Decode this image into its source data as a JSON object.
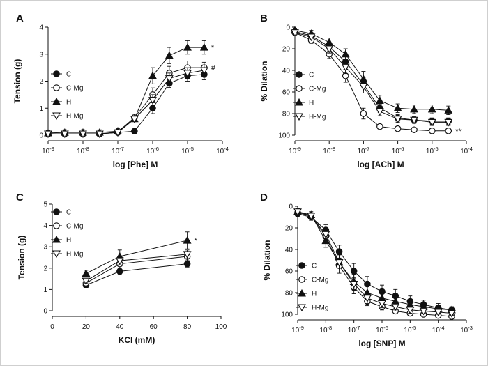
{
  "figure": {
    "panels": [
      "A",
      "B",
      "C",
      "D"
    ]
  },
  "chart_data": [
    {
      "panel": "A",
      "type": "line",
      "xlabel": "log [Phe] M",
      "ylabel": "Tension (g)",
      "x_scale": "log",
      "xlim": [
        1e-09,
        0.0001
      ],
      "ylim": [
        0,
        4
      ],
      "y_reversed": false,
      "x_ticks": [
        {
          "v": 1e-09,
          "e": "-9"
        },
        {
          "v": 1e-08,
          "e": "-8"
        },
        {
          "v": 1e-07,
          "e": "-7"
        },
        {
          "v": 1e-06,
          "e": "-6"
        },
        {
          "v": 1e-05,
          "e": "-5"
        },
        {
          "v": 0.0001,
          "e": "-4"
        }
      ],
      "y_ticks": [
        0,
        1,
        2,
        3,
        4
      ],
      "x_tick_base": "10",
      "legend": {
        "placement": "left",
        "entries": [
          "C",
          "C-Mg",
          "H",
          "H-Mg"
        ]
      },
      "x": [
        1e-09,
        3e-09,
        1e-08,
        3e-08,
        1e-07,
        3e-07,
        1e-06,
        3e-06,
        1e-05,
        3e-05
      ],
      "series": [
        {
          "name": "C",
          "marker": "circle-filled",
          "values": [
            0.05,
            0.05,
            0.05,
            0.05,
            0.1,
            0.15,
            1.0,
            1.92,
            2.2,
            2.25
          ],
          "errors": [
            0.05,
            0.05,
            0.05,
            0.05,
            0.05,
            0.05,
            0.2,
            0.15,
            0.2,
            0.2
          ]
        },
        {
          "name": "C-Mg",
          "marker": "circle-open",
          "values": [
            0.05,
            0.05,
            0.05,
            0.05,
            0.12,
            0.65,
            1.5,
            2.3,
            2.5,
            2.5
          ],
          "errors": [
            0.05,
            0.05,
            0.05,
            0.05,
            0.05,
            0.1,
            0.25,
            0.25,
            0.25,
            0.2
          ]
        },
        {
          "name": "H",
          "marker": "triangle-filled",
          "values": [
            0.08,
            0.1,
            0.1,
            0.1,
            0.15,
            0.6,
            2.2,
            2.95,
            3.25,
            3.25
          ],
          "errors": [
            0.1,
            0.1,
            0.1,
            0.1,
            0.1,
            0.15,
            0.3,
            0.3,
            0.25,
            0.25
          ]
        },
        {
          "name": "H-Mg",
          "marker": "triangle-open",
          "values": [
            0.05,
            0.05,
            0.05,
            0.05,
            0.1,
            0.6,
            1.3,
            2.1,
            2.3,
            2.4
          ],
          "errors": [
            0.05,
            0.05,
            0.05,
            0.05,
            0.05,
            0.1,
            0.2,
            0.2,
            0.2,
            0.2
          ]
        }
      ],
      "annotations": [
        {
          "text": "*",
          "series": "H"
        },
        {
          "text": "#",
          "series": "C-Mg"
        }
      ]
    },
    {
      "panel": "B",
      "type": "line",
      "xlabel": "log [ACh] M",
      "ylabel": "% Dilation",
      "x_scale": "log",
      "xlim": [
        1e-09,
        0.0001
      ],
      "ylim": [
        0,
        100
      ],
      "y_reversed": true,
      "x_ticks": [
        {
          "v": 1e-09,
          "e": "-9"
        },
        {
          "v": 1e-08,
          "e": "-8"
        },
        {
          "v": 1e-07,
          "e": "-7"
        },
        {
          "v": 1e-06,
          "e": "-6"
        },
        {
          "v": 1e-05,
          "e": "-5"
        },
        {
          "v": 0.0001,
          "e": "-4"
        }
      ],
      "y_ticks": [
        0,
        20,
        40,
        60,
        80,
        100
      ],
      "x_tick_base": "10",
      "legend": {
        "placement": "center-left",
        "entries": [
          "C",
          "C-Mg",
          "H",
          "H-Mg"
        ]
      },
      "x": [
        1e-09,
        3e-09,
        1e-08,
        3e-08,
        1e-07,
        3e-07,
        1e-06,
        3e-06,
        1e-05,
        3e-05
      ],
      "series": [
        {
          "name": "C",
          "marker": "circle-filled",
          "values": [
            4,
            8,
            18,
            32,
            53,
            75,
            84,
            86,
            87,
            87
          ],
          "errors": [
            2,
            3,
            4,
            5,
            6,
            4,
            3,
            3,
            3,
            3
          ]
        },
        {
          "name": "C-Mg",
          "marker": "circle-open",
          "values": [
            5,
            12,
            25,
            45,
            80,
            92,
            94,
            95,
            96,
            96
          ],
          "errors": [
            2,
            3,
            4,
            6,
            5,
            2,
            1,
            1,
            1,
            1
          ]
        },
        {
          "name": "H",
          "marker": "triangle-filled",
          "values": [
            3,
            6,
            14,
            25,
            48,
            68,
            75,
            76,
            76,
            77
          ],
          "errors": [
            2,
            3,
            4,
            5,
            7,
            5,
            4,
            4,
            4,
            4
          ]
        },
        {
          "name": "H-Mg",
          "marker": "triangle-open",
          "values": [
            5,
            9,
            20,
            37,
            55,
            78,
            85,
            86,
            88,
            88
          ],
          "errors": [
            2,
            3,
            4,
            6,
            6,
            4,
            3,
            3,
            3,
            3
          ]
        }
      ],
      "annotations": [
        {
          "text": "**",
          "series": "C-Mg"
        }
      ]
    },
    {
      "panel": "C",
      "type": "line",
      "xlabel": "KCl (mM)",
      "ylabel": "Tension (g)",
      "x_scale": "linear",
      "xlim": [
        0,
        100
      ],
      "ylim": [
        0,
        5
      ],
      "y_reversed": false,
      "x_ticks": [
        {
          "v": 0,
          "t": "0"
        },
        {
          "v": 20,
          "t": "20"
        },
        {
          "v": 40,
          "t": "40"
        },
        {
          "v": 60,
          "t": "60"
        },
        {
          "v": 80,
          "t": "80"
        },
        {
          "v": 100,
          "t": "100"
        }
      ],
      "y_ticks": [
        0,
        1,
        2,
        3,
        4,
        5
      ],
      "legend": {
        "placement": "top-left",
        "entries": [
          "C",
          "C-Mg",
          "H",
          "H-Mg"
        ]
      },
      "x": [
        20,
        40,
        80
      ],
      "series": [
        {
          "name": "C",
          "marker": "circle-filled",
          "values": [
            1.2,
            1.85,
            2.2
          ],
          "errors": [
            0.1,
            0.15,
            0.15
          ]
        },
        {
          "name": "C-Mg",
          "marker": "circle-open",
          "values": [
            1.3,
            2.2,
            2.55
          ],
          "errors": [
            0.1,
            0.2,
            0.2
          ]
        },
        {
          "name": "H",
          "marker": "triangle-filled",
          "values": [
            1.75,
            2.55,
            3.3
          ],
          "errors": [
            0.15,
            0.3,
            0.4
          ]
        },
        {
          "name": "H-Mg",
          "marker": "triangle-open",
          "values": [
            1.4,
            2.35,
            2.65
          ],
          "errors": [
            0.1,
            0.2,
            0.2
          ]
        }
      ],
      "annotations": [
        {
          "text": "*",
          "series": "H"
        }
      ]
    },
    {
      "panel": "D",
      "type": "line",
      "xlabel": "log [SNP] M",
      "ylabel": "% Dilation",
      "x_scale": "log",
      "xlim": [
        1e-09,
        0.001
      ],
      "ylim": [
        0,
        100
      ],
      "y_reversed": true,
      "x_ticks": [
        {
          "v": 1e-09,
          "e": "-9"
        },
        {
          "v": 1e-08,
          "e": "-8"
        },
        {
          "v": 1e-07,
          "e": "-7"
        },
        {
          "v": 1e-06,
          "e": "-6"
        },
        {
          "v": 1e-05,
          "e": "-5"
        },
        {
          "v": 0.0001,
          "e": "-4"
        },
        {
          "v": 0.001,
          "e": "-3"
        }
      ],
      "y_ticks": [
        0,
        20,
        40,
        60,
        80,
        100
      ],
      "x_tick_base": "10",
      "legend": {
        "placement": "bottom-left",
        "entries": [
          "C",
          "C-Mg",
          "H",
          "H-Mg"
        ]
      },
      "x": [
        1e-09,
        3e-09,
        1e-08,
        3e-08,
        1e-07,
        3e-07,
        1e-06,
        3e-06,
        1e-05,
        3e-05,
        0.0001,
        0.0003
      ],
      "series": [
        {
          "name": "C",
          "marker": "circle-filled",
          "values": [
            7,
            10,
            22,
            42,
            60,
            72,
            79,
            83,
            88,
            91,
            94,
            96
          ],
          "errors": [
            3,
            3,
            5,
            6,
            7,
            7,
            6,
            6,
            5,
            4,
            4,
            3
          ]
        },
        {
          "name": "C-Mg",
          "marker": "circle-open",
          "values": [
            6,
            9,
            28,
            55,
            75,
            88,
            93,
            97,
            99,
            100,
            101,
            102
          ],
          "errors": [
            3,
            3,
            5,
            7,
            6,
            4,
            3,
            2,
            2,
            2,
            2,
            2
          ]
        },
        {
          "name": "H",
          "marker": "triangle-filled",
          "values": [
            5,
            8,
            32,
            52,
            70,
            80,
            85,
            88,
            91,
            93,
            95,
            96
          ],
          "errors": [
            3,
            3,
            6,
            7,
            7,
            6,
            5,
            5,
            4,
            4,
            3,
            3
          ]
        },
        {
          "name": "H-Mg",
          "marker": "triangle-open",
          "values": [
            5,
            9,
            26,
            52,
            72,
            85,
            90,
            93,
            96,
            97,
            98,
            99
          ],
          "errors": [
            3,
            3,
            5,
            7,
            6,
            5,
            4,
            3,
            3,
            2,
            2,
            2
          ]
        }
      ],
      "annotations": []
    }
  ]
}
